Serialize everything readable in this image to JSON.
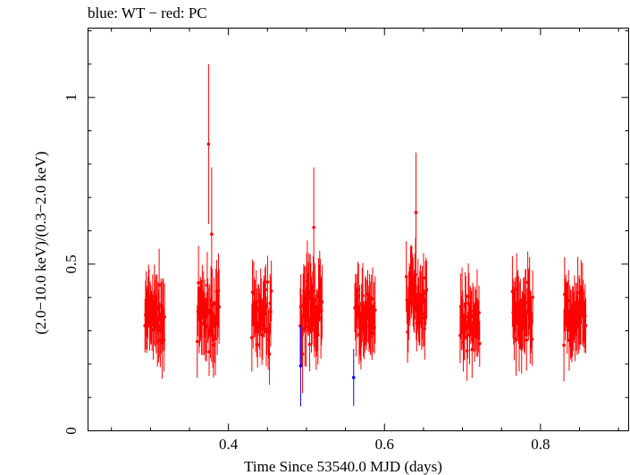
{
  "chart_data": {
    "type": "scatter",
    "title": "blue: WT − red: PC",
    "xlabel": "Time Since 53540.0 MJD (days)",
    "ylabel": "(2.0−10.0 keV)/(0.3−2.0 keV)",
    "xlim": [
      0.22,
      0.913
    ],
    "ylim": [
      0,
      1.208
    ],
    "x_ticks": [
      {
        "value": 0.4,
        "label": "0.4"
      },
      {
        "value": 0.6,
        "label": "0.6"
      },
      {
        "value": 0.8,
        "label": "0.8"
      }
    ],
    "y_ticks": [
      {
        "value": 0,
        "label": "0"
      },
      {
        "value": 0.5,
        "label": "0.5"
      },
      {
        "value": 1,
        "label": "1"
      }
    ],
    "grid": false,
    "legend": "none",
    "series": [
      {
        "color": "#ff0000",
        "clusters": [
          {
            "start": 0.293,
            "end": 0.318,
            "mean": 0.34,
            "spread": 0.06,
            "err": 0.09,
            "n": 34
          },
          {
            "start": 0.36,
            "end": 0.388,
            "mean": 0.34,
            "spread": 0.06,
            "err": 0.09,
            "n": 36
          },
          {
            "start": 0.43,
            "end": 0.455,
            "mean": 0.34,
            "spread": 0.06,
            "err": 0.085,
            "n": 32
          },
          {
            "start": 0.492,
            "end": 0.52,
            "mean": 0.36,
            "spread": 0.07,
            "err": 0.1,
            "n": 38
          },
          {
            "start": 0.562,
            "end": 0.588,
            "mean": 0.34,
            "spread": 0.06,
            "err": 0.09,
            "n": 34
          },
          {
            "start": 0.628,
            "end": 0.654,
            "mean": 0.4,
            "spread": 0.06,
            "err": 0.09,
            "n": 34
          },
          {
            "start": 0.697,
            "end": 0.722,
            "mean": 0.33,
            "spread": 0.05,
            "err": 0.085,
            "n": 32
          },
          {
            "start": 0.764,
            "end": 0.79,
            "mean": 0.35,
            "spread": 0.06,
            "err": 0.09,
            "n": 34
          },
          {
            "start": 0.83,
            "end": 0.858,
            "mean": 0.34,
            "spread": 0.06,
            "err": 0.09,
            "n": 34
          }
        ],
        "points": [
          {
            "x": 0.3745,
            "y": 0.86,
            "err": 0.24
          },
          {
            "x": 0.3785,
            "y": 0.59,
            "err": 0.2
          },
          {
            "x": 0.6404,
            "y": 0.655,
            "err": 0.18
          },
          {
            "x": 0.5094,
            "y": 0.61,
            "err": 0.18
          }
        ]
      },
      {
        "color": "#0000ff",
        "points": [
          {
            "x": 0.4925,
            "y": 0.195,
            "err": 0.122
          },
          {
            "x": 0.5605,
            "y": 0.16,
            "err": 0.085
          }
        ]
      }
    ]
  }
}
